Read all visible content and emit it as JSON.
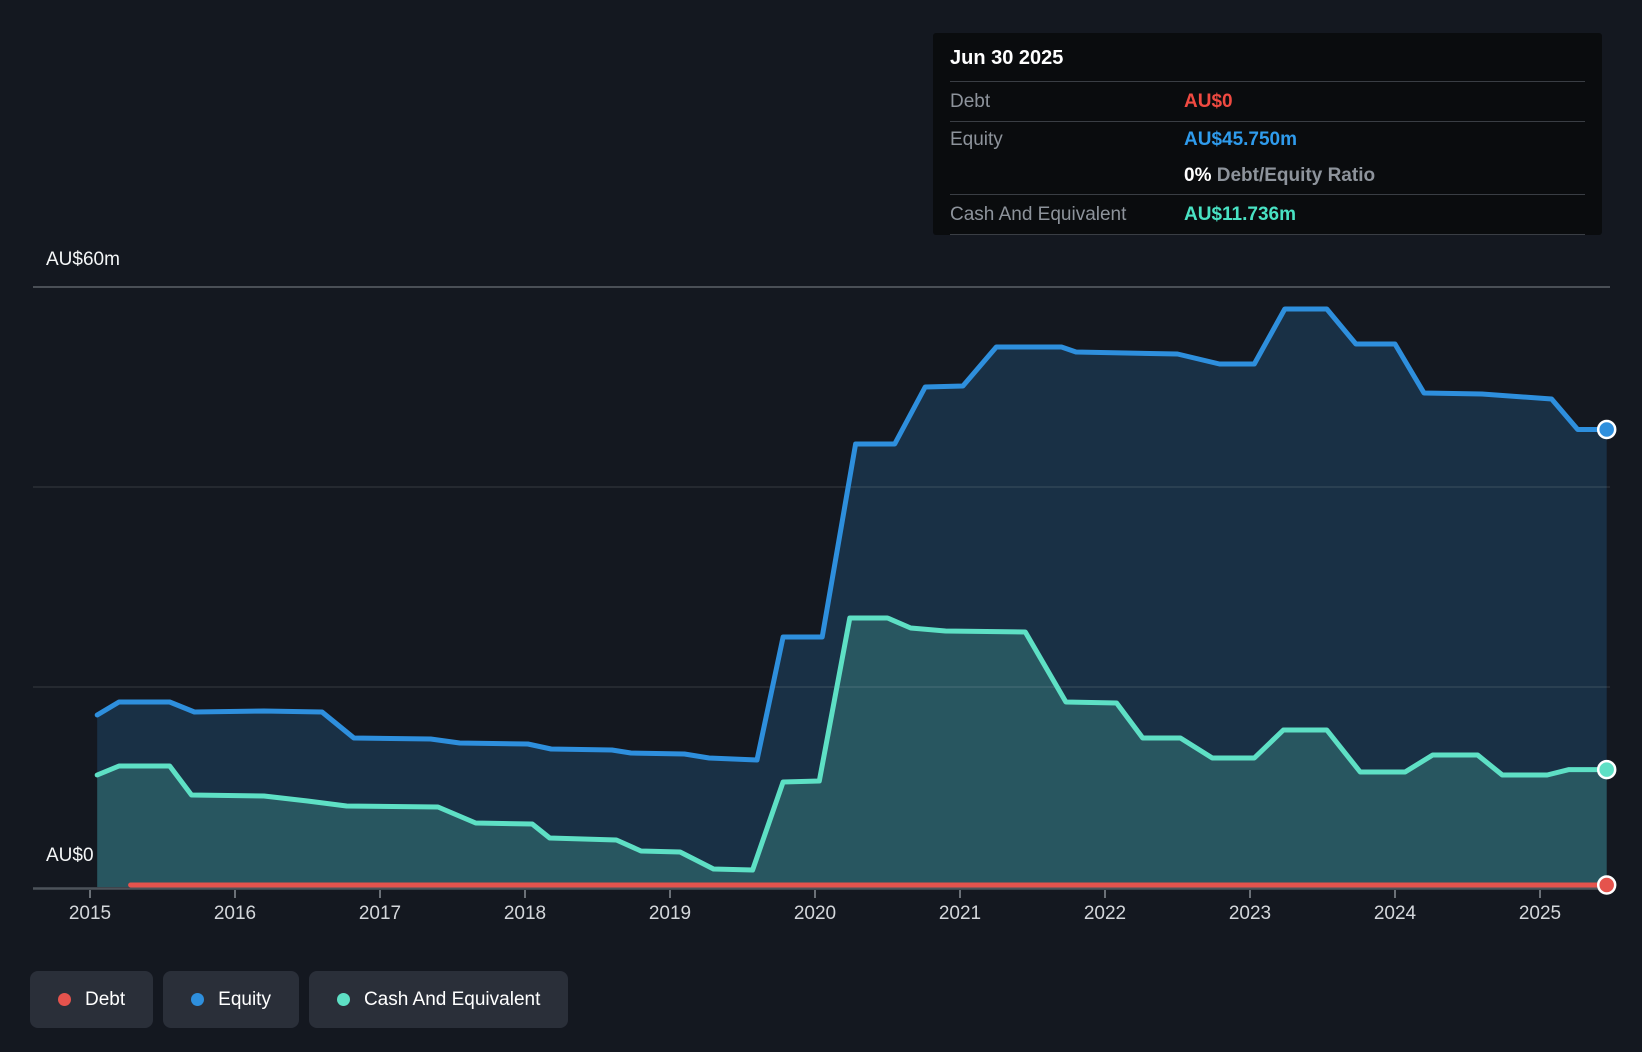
{
  "y_axis": {
    "top_label": "AU$60m",
    "bottom_label": "AU$0"
  },
  "x_axis": {
    "years": [
      "2015",
      "2016",
      "2017",
      "2018",
      "2019",
      "2020",
      "2021",
      "2022",
      "2023",
      "2024",
      "2025"
    ]
  },
  "tooltip": {
    "date": "Jun 30 2025",
    "debt": {
      "label": "Debt",
      "value": "AU$0"
    },
    "equity": {
      "label": "Equity",
      "value": "AU$45.750m"
    },
    "ratio": {
      "percent": "0%",
      "label": "Debt/Equity Ratio"
    },
    "cash": {
      "label": "Cash And Equivalent",
      "value": "AU$11.736m"
    }
  },
  "legend": {
    "items": [
      {
        "id": "debt",
        "label": "Debt"
      },
      {
        "id": "equity",
        "label": "Equity"
      },
      {
        "id": "cash",
        "label": "Cash And Equivalent"
      }
    ]
  },
  "colors": {
    "background": "#141820",
    "debt_line": "#e5534d",
    "equity_line": "#2e8fdd",
    "cash_line": "#5ee0c5",
    "equity_fill": "rgba(46,143,221,0.20)",
    "cash_fill": "rgba(94,224,197,0.22)",
    "gridline_major": "#4a4f56",
    "gridline_minor": "rgba(255,255,255,0.10)",
    "axis_line": "#4d535a",
    "tick_label": "#d4d7db",
    "tooltip_bg": "#0a0c0e",
    "debt_value_text": "#f04a41",
    "equity_value_text": "#2f9bec",
    "cash_value_text": "#49e2c3"
  },
  "chart_data": {
    "type": "area",
    "x_unit": "year",
    "y_unit": "AU$m",
    "xlim": [
      2014.6,
      2025.5
    ],
    "ylim": [
      0,
      60
    ],
    "y_gridlines_m": [
      20,
      40,
      60
    ],
    "x_tick_years": [
      2015,
      2016,
      2017,
      2018,
      2019,
      2020,
      2021,
      2022,
      2023,
      2024,
      2025
    ],
    "legend_position": "bottom-left",
    "end_markers": true,
    "series": [
      {
        "name": "Debt",
        "color": "#e5534d",
        "points": [
          [
            2015.28,
            0
          ],
          [
            2025.46,
            0
          ]
        ]
      },
      {
        "name": "Equity",
        "color": "#2e8fdd",
        "points": [
          [
            2015.05,
            17.2
          ],
          [
            2015.2,
            18.5
          ],
          [
            2015.55,
            18.5
          ],
          [
            2015.72,
            17.5
          ],
          [
            2016.2,
            17.6
          ],
          [
            2016.6,
            17.5
          ],
          [
            2016.82,
            14.9
          ],
          [
            2017.35,
            14.8
          ],
          [
            2017.55,
            14.4
          ],
          [
            2018.02,
            14.3
          ],
          [
            2018.18,
            13.8
          ],
          [
            2018.6,
            13.7
          ],
          [
            2018.73,
            13.4
          ],
          [
            2019.1,
            13.3
          ],
          [
            2019.27,
            12.9
          ],
          [
            2019.6,
            12.7
          ],
          [
            2019.78,
            25.0
          ],
          [
            2020.05,
            25.0
          ],
          [
            2020.28,
            44.3
          ],
          [
            2020.55,
            44.3
          ],
          [
            2020.76,
            50.0
          ],
          [
            2021.02,
            50.1
          ],
          [
            2021.25,
            54.0
          ],
          [
            2021.7,
            54.0
          ],
          [
            2021.8,
            53.5
          ],
          [
            2022.5,
            53.3
          ],
          [
            2022.79,
            52.3
          ],
          [
            2023.03,
            52.3
          ],
          [
            2023.24,
            57.8
          ],
          [
            2023.53,
            57.8
          ],
          [
            2023.73,
            54.3
          ],
          [
            2024.0,
            54.3
          ],
          [
            2024.2,
            49.4
          ],
          [
            2024.6,
            49.3
          ],
          [
            2025.08,
            48.8
          ],
          [
            2025.26,
            45.75
          ],
          [
            2025.46,
            45.75
          ]
        ]
      },
      {
        "name": "Cash And Equivalent",
        "color": "#5ee0c5",
        "points": [
          [
            2015.05,
            11.2
          ],
          [
            2015.2,
            12.1
          ],
          [
            2015.55,
            12.1
          ],
          [
            2015.7,
            9.2
          ],
          [
            2016.2,
            9.1
          ],
          [
            2016.5,
            8.6
          ],
          [
            2016.77,
            8.1
          ],
          [
            2017.4,
            8.0
          ],
          [
            2017.66,
            6.4
          ],
          [
            2018.05,
            6.3
          ],
          [
            2018.17,
            4.9
          ],
          [
            2018.63,
            4.7
          ],
          [
            2018.8,
            3.6
          ],
          [
            2019.07,
            3.5
          ],
          [
            2019.3,
            1.8
          ],
          [
            2019.57,
            1.7
          ],
          [
            2019.78,
            10.5
          ],
          [
            2020.03,
            10.6
          ],
          [
            2020.24,
            26.9
          ],
          [
            2020.5,
            26.9
          ],
          [
            2020.66,
            25.9
          ],
          [
            2020.9,
            25.6
          ],
          [
            2021.45,
            25.5
          ],
          [
            2021.73,
            18.5
          ],
          [
            2022.08,
            18.4
          ],
          [
            2022.26,
            14.9
          ],
          [
            2022.52,
            14.9
          ],
          [
            2022.74,
            12.9
          ],
          [
            2023.03,
            12.9
          ],
          [
            2023.23,
            15.7
          ],
          [
            2023.53,
            15.7
          ],
          [
            2023.76,
            11.5
          ],
          [
            2024.07,
            11.5
          ],
          [
            2024.26,
            13.2
          ],
          [
            2024.57,
            13.2
          ],
          [
            2024.74,
            11.2
          ],
          [
            2025.05,
            11.2
          ],
          [
            2025.2,
            11.736
          ],
          [
            2025.46,
            11.736
          ]
        ]
      }
    ],
    "final_values": {
      "Debt": "AU$0",
      "Equity": "AU$45.750m",
      "Cash And Equivalent": "AU$11.736m",
      "debt_equity_ratio": "0%"
    }
  }
}
